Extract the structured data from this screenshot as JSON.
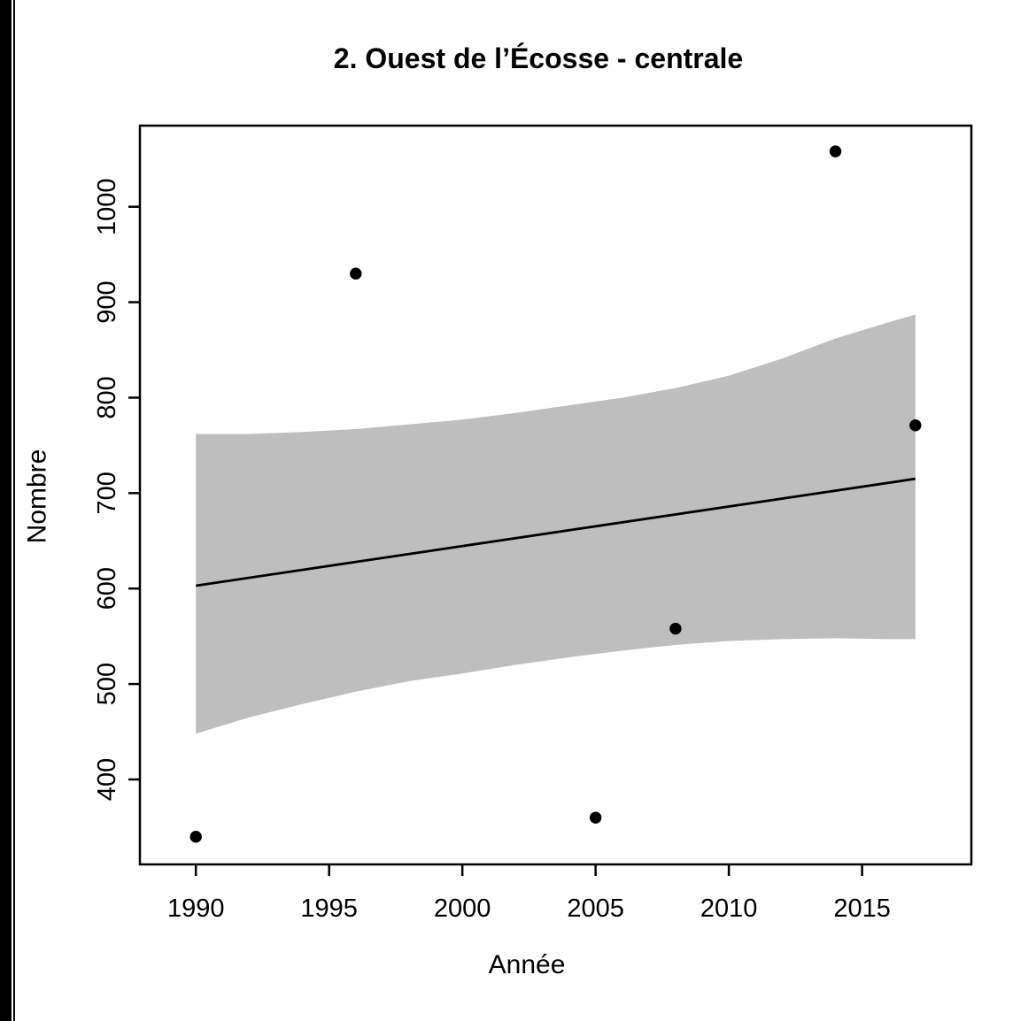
{
  "decorations": {
    "left_bar_color": "#000000"
  },
  "chart_data": {
    "type": "scatter",
    "title": "2. Ouest de l’Écosse - centrale",
    "xlabel": "Année",
    "ylabel": "Nombre",
    "x_ticks": [
      1990,
      1995,
      2000,
      2005,
      2010,
      2015
    ],
    "y_ticks": [
      400,
      500,
      600,
      700,
      800,
      900,
      1000
    ],
    "xlim": [
      1987.9,
      2019.1
    ],
    "ylim": [
      311,
      1085
    ],
    "grid": false,
    "legend": "none",
    "point_color": "#000000",
    "line_color": "#000000",
    "band_color": "#bebebe",
    "background_color": "#ffffff",
    "points": [
      [
        1990,
        340
      ],
      [
        1996,
        930
      ],
      [
        2005,
        360
      ],
      [
        2008,
        558
      ],
      [
        2014,
        1058
      ],
      [
        2017,
        771
      ]
    ],
    "regression_line": [
      [
        1990,
        603
      ],
      [
        2017,
        715
      ]
    ],
    "confidence_band": [
      [
        1990,
        448,
        762
      ],
      [
        1992,
        465,
        762
      ],
      [
        1994,
        479,
        764
      ],
      [
        1996,
        492,
        767
      ],
      [
        1998,
        503,
        772
      ],
      [
        2000,
        511,
        777
      ],
      [
        2002,
        520,
        784
      ],
      [
        2004,
        528,
        792
      ],
      [
        2006,
        535,
        800
      ],
      [
        2008,
        541,
        810
      ],
      [
        2010,
        545,
        823
      ],
      [
        2012,
        547,
        841
      ],
      [
        2014,
        548,
        862
      ],
      [
        2016,
        547,
        879
      ],
      [
        2017,
        547,
        887
      ]
    ]
  }
}
